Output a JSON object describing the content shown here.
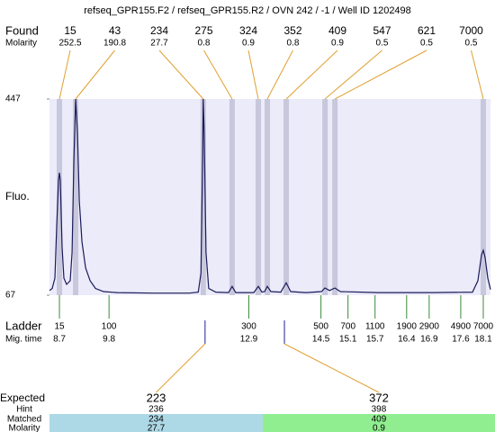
{
  "chart_data": {
    "type": "electropherogram",
    "title": "refseq_GPR155.F2 / refseq_GPR155.R2 / OVN 242 / -1 / Well ID 1202498",
    "ylabel": "Fluo.",
    "ylim": [
      67,
      447
    ],
    "yticks": [
      67,
      447
    ],
    "xlim": [
      8.48,
      18.26
    ],
    "color": "#1a1a5a",
    "x": [
      8.48,
      8.54,
      8.6,
      8.64,
      8.68,
      8.7,
      8.72,
      8.76,
      8.8,
      8.86,
      8.94,
      8.98,
      9.02,
      9.06,
      9.1,
      9.14,
      9.2,
      9.28,
      9.38,
      9.5,
      9.68,
      9.98,
      10.78,
      11.58,
      11.78,
      11.84,
      11.88,
      11.89,
      11.91,
      11.95,
      12.01,
      12.17,
      12.45,
      12.53,
      12.61,
      13.01,
      13.11,
      13.19,
      13.25,
      13.31,
      13.39,
      13.61,
      13.73,
      13.83,
      14.17,
      14.51,
      14.59,
      14.69,
      14.81,
      14.93,
      15.77,
      16.96,
      17.86,
      17.98,
      18.06,
      18.1,
      18.14,
      18.2,
      18.26
    ],
    "values": [
      76,
      80,
      100,
      200,
      290,
      304,
      290,
      160,
      100,
      88,
      95,
      150,
      330,
      447,
      380,
      250,
      170,
      120,
      95,
      80,
      74,
      72,
      71,
      71,
      73,
      110,
      350,
      447,
      380,
      150,
      80,
      73,
      72,
      84,
      72,
      72,
      84,
      73,
      74,
      84,
      74,
      73,
      91,
      74,
      72,
      74,
      81,
      76,
      81,
      74,
      72,
      72,
      73,
      95,
      145,
      154,
      140,
      100,
      78
    ],
    "found": {
      "label": "Found",
      "molarity_label": "Molarity",
      "color": "#e0a030",
      "band_color": "#c8c8dc",
      "peaks": [
        {
          "size": 15,
          "molarity": 252.5,
          "time": 8.7
        },
        {
          "size": 43,
          "molarity": 190.8,
          "time": 9.06
        },
        {
          "size": 234,
          "molarity": 27.7,
          "time": 11.89
        },
        {
          "size": 275,
          "molarity": 0.8,
          "time": 12.53
        },
        {
          "size": 324,
          "molarity": 0.9,
          "time": 13.11
        },
        {
          "size": 352,
          "molarity": 0.8,
          "time": 13.31
        },
        {
          "size": 409,
          "molarity": 0.9,
          "time": 13.73
        },
        {
          "size": 547,
          "molarity": 0.5,
          "time": 14.59
        },
        {
          "size": 621,
          "molarity": 0.5,
          "time": 14.81
        },
        {
          "size": 7000,
          "molarity": 0.5,
          "time": 18.1
        }
      ]
    },
    "ladder": {
      "label": "Ladder",
      "time_label": "Mig. time",
      "color": "#3a8a3a",
      "peaks": [
        {
          "size": 15,
          "time": 8.7
        },
        {
          "size": 100,
          "time": 9.8
        },
        {
          "size": 300,
          "time": 12.9
        },
        {
          "size": 500,
          "time": 14.5
        },
        {
          "size": 700,
          "time": 15.1
        },
        {
          "size": 1100,
          "time": 15.7
        },
        {
          "size": 1900,
          "time": 16.4
        },
        {
          "size": 2900,
          "time": 16.9
        },
        {
          "size": 4900,
          "time": 17.6
        },
        {
          "size": 7000,
          "time": 18.1
        }
      ]
    },
    "expected": {
      "label": "Expected",
      "hint_label": "Hint",
      "matched_label": "Matched",
      "molarity_label": "Molarity",
      "peaks": [
        {
          "size": 223,
          "hint": 236,
          "matched": 234,
          "molarity": 27.7,
          "time": 11.93,
          "color": "#add8e6"
        },
        {
          "size": 372,
          "hint": 398,
          "matched": 409,
          "molarity": 0.9,
          "time": 13.69,
          "color": "#90ee90"
        }
      ]
    }
  }
}
